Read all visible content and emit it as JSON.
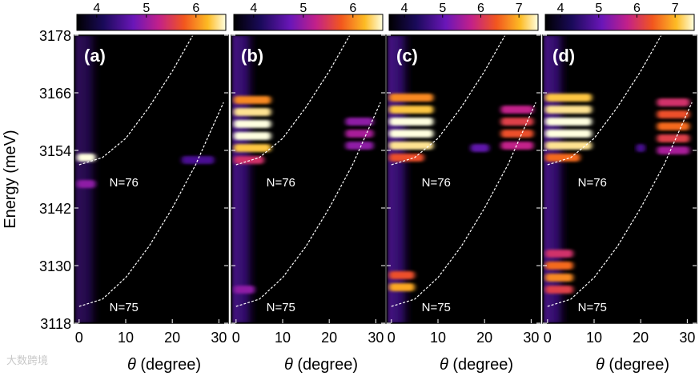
{
  "watermark": "大数跨境",
  "chart_data": {
    "type": "heatmap",
    "title": "",
    "ylabel": "Energy (meV)",
    "xlabel_prefix": "θ",
    "xlabel_suffix": "(degree)",
    "ylim": [
      3118,
      3178
    ],
    "xlim": [
      -1,
      32
    ],
    "yticks": [
      "3178",
      "3166",
      "3154",
      "3142",
      "3130",
      "3118"
    ],
    "xticks": [
      "0",
      "10",
      "20",
      "30"
    ],
    "panels": [
      {
        "label": "(a)",
        "colorbar_ticks": [
          4,
          5,
          6
        ],
        "colorbar_range": [
          3.6,
          6.6
        ],
        "mode_labels": [
          {
            "text": "N=76",
            "theta": 6.5,
            "energy": 3147.5
          },
          {
            "text": "N=75",
            "theta": 6.5,
            "energy": 3121.5
          }
        ],
        "dispersion_curves": [
          {
            "name": "N=76",
            "x": [
              0,
              5,
              10,
              15,
              20,
              25,
              31
            ],
            "y": [
              3151,
              3152.5,
              3156.5,
              3163,
              3170.5,
              3179,
              3190
            ]
          },
          {
            "name": "N=75",
            "x": [
              0,
              5,
              10,
              15,
              20,
              25,
              31
            ],
            "y": [
              3121.5,
              3123,
              3127.5,
              3134,
              3142,
              3151,
              3164
            ]
          }
        ],
        "emission_lines": [
          {
            "theta_min": -0.5,
            "theta_max": 3.5,
            "energy": 3152.5,
            "intensity": 1.0
          },
          {
            "theta_min": -0.5,
            "theta_max": 3.5,
            "energy": 3147.0,
            "intensity": 0.45
          },
          {
            "theta_min": 22,
            "theta_max": 29,
            "energy": 3152.0,
            "intensity": 0.3
          }
        ]
      },
      {
        "label": "(b)",
        "colorbar_ticks": [
          4,
          5,
          6
        ],
        "colorbar_range": [
          3.6,
          6.6
        ],
        "mode_labels": [
          {
            "text": "N=76",
            "theta": 6.5,
            "energy": 3147.5
          },
          {
            "text": "N=75",
            "theta": 6.5,
            "energy": 3121.5
          }
        ],
        "dispersion_curves": [
          {
            "name": "N=76",
            "x": [
              0,
              5,
              10,
              15,
              20,
              25,
              31
            ],
            "y": [
              3151,
              3152.5,
              3156.5,
              3163,
              3170.5,
              3179,
              3190
            ]
          },
          {
            "name": "N=75",
            "x": [
              0,
              5,
              10,
              15,
              20,
              25,
              31
            ],
            "y": [
              3121.5,
              3123,
              3127.5,
              3134,
              3142,
              3151,
              3164
            ]
          }
        ],
        "emission_lines": [
          {
            "theta_min": -0.5,
            "theta_max": 7.5,
            "energy": 3164.5,
            "intensity": 0.8
          },
          {
            "theta_min": -0.5,
            "theta_max": 7.5,
            "energy": 3162.0,
            "intensity": 0.95
          },
          {
            "theta_min": -0.5,
            "theta_max": 7.5,
            "energy": 3159.5,
            "intensity": 1.0
          },
          {
            "theta_min": -0.5,
            "theta_max": 7.5,
            "energy": 3157.0,
            "intensity": 1.0
          },
          {
            "theta_min": -0.5,
            "theta_max": 7.5,
            "energy": 3154.5,
            "intensity": 0.9
          },
          {
            "theta_min": -0.5,
            "theta_max": 6.0,
            "energy": 3152.0,
            "intensity": 0.6
          },
          {
            "theta_min": -0.5,
            "theta_max": 4.0,
            "energy": 3125.0,
            "intensity": 0.45
          },
          {
            "theta_min": 23.5,
            "theta_max": 29.5,
            "energy": 3160.0,
            "intensity": 0.45
          },
          {
            "theta_min": 23.5,
            "theta_max": 29.5,
            "energy": 3157.5,
            "intensity": 0.5
          },
          {
            "theta_min": 23.5,
            "theta_max": 29.5,
            "energy": 3155.0,
            "intensity": 0.45
          }
        ]
      },
      {
        "label": "(c)",
        "colorbar_ticks": [
          4,
          5,
          6,
          7
        ],
        "colorbar_range": [
          3.6,
          7.5
        ],
        "mode_labels": [
          {
            "text": "N=76",
            "theta": 6.5,
            "energy": 3147.5
          },
          {
            "text": "N=75",
            "theta": 6.5,
            "energy": 3121.5
          }
        ],
        "dispersion_curves": [
          {
            "name": "N=76",
            "x": [
              0,
              5,
              10,
              15,
              20,
              25,
              31
            ],
            "y": [
              3151,
              3152.5,
              3156.5,
              3163,
              3170.5,
              3179,
              3190
            ]
          },
          {
            "name": "N=75",
            "x": [
              0,
              5,
              10,
              15,
              20,
              25,
              31
            ],
            "y": [
              3121.5,
              3123,
              3127.5,
              3134,
              3142,
              3151,
              3164
            ]
          }
        ],
        "emission_lines": [
          {
            "theta_min": -0.5,
            "theta_max": 9.0,
            "energy": 3165.0,
            "intensity": 0.8
          },
          {
            "theta_min": -0.5,
            "theta_max": 9.0,
            "energy": 3162.5,
            "intensity": 0.9
          },
          {
            "theta_min": -0.5,
            "theta_max": 9.0,
            "energy": 3160.0,
            "intensity": 1.0
          },
          {
            "theta_min": -0.5,
            "theta_max": 9.0,
            "energy": 3157.5,
            "intensity": 1.0
          },
          {
            "theta_min": -0.5,
            "theta_max": 9.0,
            "energy": 3155.0,
            "intensity": 0.95
          },
          {
            "theta_min": -0.5,
            "theta_max": 7.0,
            "energy": 3152.5,
            "intensity": 0.7
          },
          {
            "theta_min": -0.5,
            "theta_max": 5.0,
            "energy": 3128.0,
            "intensity": 0.7
          },
          {
            "theta_min": -0.5,
            "theta_max": 5.0,
            "energy": 3125.5,
            "intensity": 0.85
          },
          {
            "theta_min": 17.0,
            "theta_max": 21.0,
            "energy": 3154.5,
            "intensity": 0.35
          },
          {
            "theta_min": 23.5,
            "theta_max": 30.5,
            "energy": 3162.5,
            "intensity": 0.55
          },
          {
            "theta_min": 23.5,
            "theta_max": 30.5,
            "energy": 3160.0,
            "intensity": 0.65
          },
          {
            "theta_min": 23.5,
            "theta_max": 30.5,
            "energy": 3157.5,
            "intensity": 0.7
          },
          {
            "theta_min": 23.5,
            "theta_max": 30.5,
            "energy": 3155.0,
            "intensity": 0.55
          }
        ]
      },
      {
        "label": "(d)",
        "colorbar_ticks": [
          4,
          5,
          6,
          7
        ],
        "colorbar_range": [
          3.6,
          7.5
        ],
        "mode_labels": [
          {
            "text": "N=76",
            "theta": 6.5,
            "energy": 3147.5
          },
          {
            "text": "N=75",
            "theta": 6.5,
            "energy": 3121.5
          }
        ],
        "dispersion_curves": [
          {
            "name": "N=76",
            "x": [
              0,
              5,
              10,
              15,
              20,
              25,
              31
            ],
            "y": [
              3151,
              3152.5,
              3156.5,
              3163,
              3170.5,
              3179,
              3190
            ]
          },
          {
            "name": "N=75",
            "x": [
              0,
              5,
              10,
              15,
              20,
              25,
              31
            ],
            "y": [
              3121.5,
              3123,
              3127.5,
              3134,
              3142,
              3151,
              3164
            ]
          }
        ],
        "emission_lines": [
          {
            "theta_min": -0.5,
            "theta_max": 9.5,
            "energy": 3165.0,
            "intensity": 0.9
          },
          {
            "theta_min": -0.5,
            "theta_max": 9.5,
            "energy": 3162.5,
            "intensity": 0.95
          },
          {
            "theta_min": -0.5,
            "theta_max": 9.5,
            "energy": 3160.0,
            "intensity": 1.0
          },
          {
            "theta_min": -0.5,
            "theta_max": 9.5,
            "energy": 3157.5,
            "intensity": 1.0
          },
          {
            "theta_min": -0.5,
            "theta_max": 9.5,
            "energy": 3155.0,
            "intensity": 0.95
          },
          {
            "theta_min": -0.5,
            "theta_max": 7.0,
            "energy": 3152.5,
            "intensity": 0.75
          },
          {
            "theta_min": -0.5,
            "theta_max": 5.5,
            "energy": 3132.5,
            "intensity": 0.6
          },
          {
            "theta_min": -0.5,
            "theta_max": 5.5,
            "energy": 3130.0,
            "intensity": 0.75
          },
          {
            "theta_min": -0.5,
            "theta_max": 5.5,
            "energy": 3127.5,
            "intensity": 0.8
          },
          {
            "theta_min": -0.5,
            "theta_max": 5.5,
            "energy": 3125.0,
            "intensity": 0.65
          },
          {
            "theta_min": 19.0,
            "theta_max": 21.0,
            "energy": 3154.5,
            "intensity": 0.3
          },
          {
            "theta_min": 23.5,
            "theta_max": 30.5,
            "energy": 3164.0,
            "intensity": 0.6
          },
          {
            "theta_min": 23.5,
            "theta_max": 30.5,
            "energy": 3161.5,
            "intensity": 0.7
          },
          {
            "theta_min": 23.5,
            "theta_max": 30.5,
            "energy": 3159.0,
            "intensity": 0.75
          },
          {
            "theta_min": 23.5,
            "theta_max": 30.5,
            "energy": 3156.5,
            "intensity": 0.65
          },
          {
            "theta_min": 23.5,
            "theta_max": 30.5,
            "energy": 3154.0,
            "intensity": 0.5
          }
        ]
      }
    ]
  }
}
